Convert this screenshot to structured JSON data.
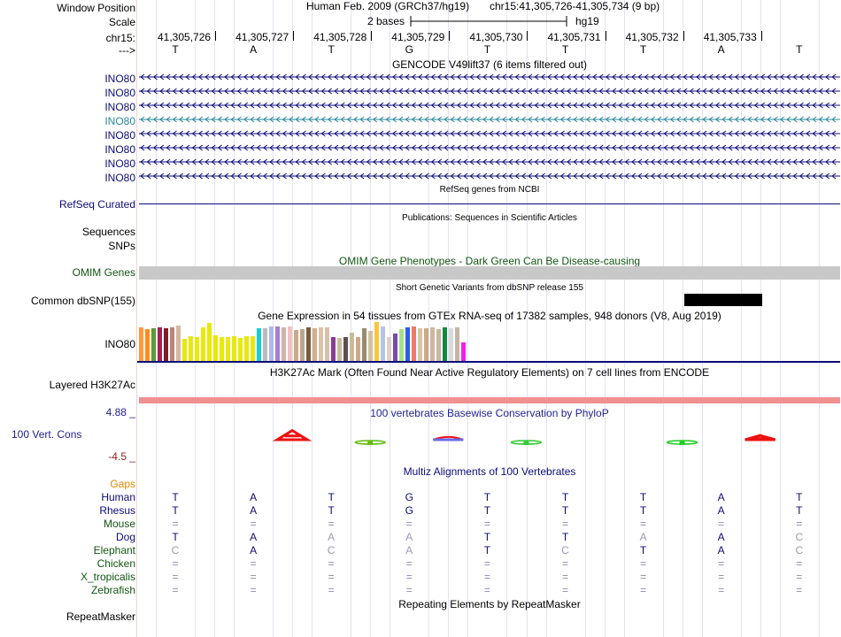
{
  "header": {
    "window_position_label": "Window Position",
    "assembly_text": "Human Feb. 2009 (GRCh37/hg19)",
    "position_text": "chr15:41,305,726-41,305,734 (9 bp)",
    "scale_label": "Scale",
    "scale_text": "2 bases",
    "db_text": "hg19",
    "chrom_label": "chr15:",
    "strand_label": "--->",
    "positions": [
      "41,305,726",
      "41,305,727",
      "41,305,728",
      "41,305,729",
      "41,305,730",
      "41,305,731",
      "41,305,732",
      "41,305,733"
    ],
    "bases": [
      "T",
      "A",
      "T",
      "G",
      "T",
      "T",
      "T",
      "A",
      "T"
    ]
  },
  "gencode": {
    "title": "GENCODE V49lift37 (6 items filtered out)",
    "rows": [
      "INO80",
      "INO80",
      "INO80",
      "INO80",
      "INO80",
      "INO80",
      "INO80",
      "INO80"
    ],
    "color_blue": "#0c0c78",
    "color_teal": "#29879b"
  },
  "refseq": {
    "title": "RefSeq genes from NCBI",
    "label": "RefSeq Curated"
  },
  "publications": {
    "title": "Publications: Sequences in Scientific Articles",
    "sequences_label": "Sequences",
    "snps_label": "SNPs"
  },
  "omim": {
    "title": "OMIM Gene Phenotypes - Dark Green Can Be Disease-causing",
    "label": "OMIM Genes",
    "color": "#115511"
  },
  "dbsnp": {
    "title": "Short Genetic Variants from dbSNP release 155",
    "label": "Common dbSNP(155)"
  },
  "gtex": {
    "title": "Gene Expression in 54 tissues from GTEx RNA-seq of 17382 samples, 948 donors (V8, Aug 2019)",
    "label": "INO80",
    "bars": [
      {
        "value": 38,
        "color": "#ff9a3c"
      },
      {
        "value": 36,
        "color": "#ff8c1a"
      },
      {
        "value": 37,
        "color": "#5b9a3c"
      },
      {
        "value": 38,
        "color": "#a61f58"
      },
      {
        "value": 37,
        "color": "#7a1f2a"
      },
      {
        "value": 38,
        "color": "#b9857a"
      },
      {
        "value": 40,
        "color": "#d5b79f"
      },
      {
        "value": 25,
        "color": "#e8e80c"
      },
      {
        "value": 28,
        "color": "#e8e80c"
      },
      {
        "value": 27,
        "color": "#e8e80c"
      },
      {
        "value": 38,
        "color": "#e8e80c"
      },
      {
        "value": 43,
        "color": "#e8e80c"
      },
      {
        "value": 29,
        "color": "#e8e80c"
      },
      {
        "value": 27,
        "color": "#e8e80c"
      },
      {
        "value": 27,
        "color": "#e8e80c"
      },
      {
        "value": 28,
        "color": "#e8e80c"
      },
      {
        "value": 26,
        "color": "#e8e80c"
      },
      {
        "value": 28,
        "color": "#e8e80c"
      },
      {
        "value": 28,
        "color": "#e8e80c"
      },
      {
        "value": 37,
        "color": "#18ccd6"
      },
      {
        "value": 37,
        "color": "#bbbbbb"
      },
      {
        "value": 39,
        "color": "#a9b8ee"
      },
      {
        "value": 39,
        "color": "#a47fd3"
      },
      {
        "value": 38,
        "color": "#cfb4ad"
      },
      {
        "value": 39,
        "color": "#f0c0c0"
      },
      {
        "value": 35,
        "color": "#ccaa88"
      },
      {
        "value": 36,
        "color": "#bfa48e"
      },
      {
        "value": 38,
        "color": "#7a5a3a"
      },
      {
        "value": 37,
        "color": "#cfb08c"
      },
      {
        "value": 38,
        "color": "#ddc2aa"
      },
      {
        "value": 38,
        "color": "#d9c0a8"
      },
      {
        "value": 27,
        "color": "#8a3b9a"
      },
      {
        "value": 26,
        "color": "#ccbb99"
      },
      {
        "value": 27,
        "color": "#5a5050"
      },
      {
        "value": 32,
        "color": "#ccbb99"
      },
      {
        "value": 27,
        "color": "#ccaa88"
      },
      {
        "value": 37,
        "color": "#9a8a70"
      },
      {
        "value": 34,
        "color": "#d2c0a4"
      },
      {
        "value": 44,
        "color": "#f7c63d"
      },
      {
        "value": 39,
        "color": "#b7c4e8"
      },
      {
        "value": 27,
        "color": "#dcd2c8"
      },
      {
        "value": 31,
        "color": "#7a4aa8"
      },
      {
        "value": 36,
        "color": "#a8e08a"
      },
      {
        "value": 38,
        "color": "#2a5fe8"
      },
      {
        "value": 39,
        "color": "#ee7a66"
      },
      {
        "value": 37,
        "color": "#dac4a8"
      },
      {
        "value": 37,
        "color": "#ccaa88"
      },
      {
        "value": 38,
        "color": "#cfb5a0"
      },
      {
        "value": 36,
        "color": "#c8b6a2"
      },
      {
        "value": 38,
        "color": "#108a40"
      },
      {
        "value": 37,
        "color": "#dadada"
      },
      {
        "value": 38,
        "color": "#c4b4a4"
      },
      {
        "value": 21,
        "color": "#f01eef"
      }
    ]
  },
  "h3k27ac": {
    "title": "H3K27Ac Mark (Often Found Near Active Regulatory Elements) on 7 cell lines from ENCODE",
    "label": "Layered H3K27Ac",
    "color": "#f09090"
  },
  "phylop": {
    "title": "100 vertebrates Basewise Conservation by PhyloP",
    "label": "100 Vert. Cons",
    "ymax_label": "4.88 _",
    "ymin_label": "-4.5 _",
    "ymax": 4.88,
    "ymin": -4.5,
    "marks": [
      {
        "base": "A",
        "pos": 2,
        "value": 1.3,
        "color": "#ee1111"
      },
      {
        "base": "T",
        "pos": 3,
        "value": -0.2,
        "color": "#66bb11"
      },
      {
        "base": "G",
        "pos": 4,
        "value": 0.4,
        "color": "#ee1111"
      },
      {
        "base": "T",
        "pos": 5,
        "value": 0.05,
        "color": "#33cc33"
      },
      {
        "base": "T",
        "pos": 7,
        "value": 0.15,
        "color": "#22cc22"
      },
      {
        "base": "A",
        "pos": 8,
        "value": 0.6,
        "color": "#ee1111"
      }
    ]
  },
  "multiz": {
    "title": "Multiz Alignments of 100 Vertebrates",
    "gaps_label": "Gaps",
    "species": [
      {
        "name": "Human",
        "color": "#0c0c78",
        "bases": [
          "T",
          "A",
          "T",
          "G",
          "T",
          "T",
          "T",
          "A",
          "T"
        ]
      },
      {
        "name": "Rhesus",
        "color": "#0c0c78",
        "bases": [
          "T",
          "A",
          "T",
          "G",
          "T",
          "T",
          "T",
          "A",
          "T"
        ]
      },
      {
        "name": "Mouse",
        "color": "#115511",
        "bases": [
          "=",
          "=",
          "=",
          "=",
          "=",
          "=",
          "=",
          "=",
          "="
        ]
      },
      {
        "name": "Dog",
        "color": "#0c0c78",
        "bases": [
          "T",
          "A",
          "A",
          "A",
          "T",
          "T",
          "A",
          "A",
          "C"
        ]
      },
      {
        "name": "Elephant",
        "color": "#115511",
        "bases": [
          "C",
          "A",
          "C",
          "A",
          "T",
          "C",
          "T",
          "A",
          "C"
        ]
      },
      {
        "name": "Chicken",
        "color": "#115511",
        "bases": [
          "=",
          "=",
          "=",
          "=",
          "=",
          "=",
          "=",
          "=",
          "="
        ]
      },
      {
        "name": "X_tropicalis",
        "color": "#115511",
        "bases": [
          "=",
          "=",
          "=",
          "=",
          "=",
          "=",
          "=",
          "=",
          "="
        ]
      },
      {
        "name": "Zebrafish",
        "color": "#115511",
        "bases": [
          "=",
          "=",
          "=",
          "=",
          "=",
          "=",
          "=",
          "=",
          "="
        ]
      }
    ]
  },
  "repeatmasker": {
    "title": "Repeating Elements by RepeatMasker",
    "label": "RepeatMasker"
  }
}
